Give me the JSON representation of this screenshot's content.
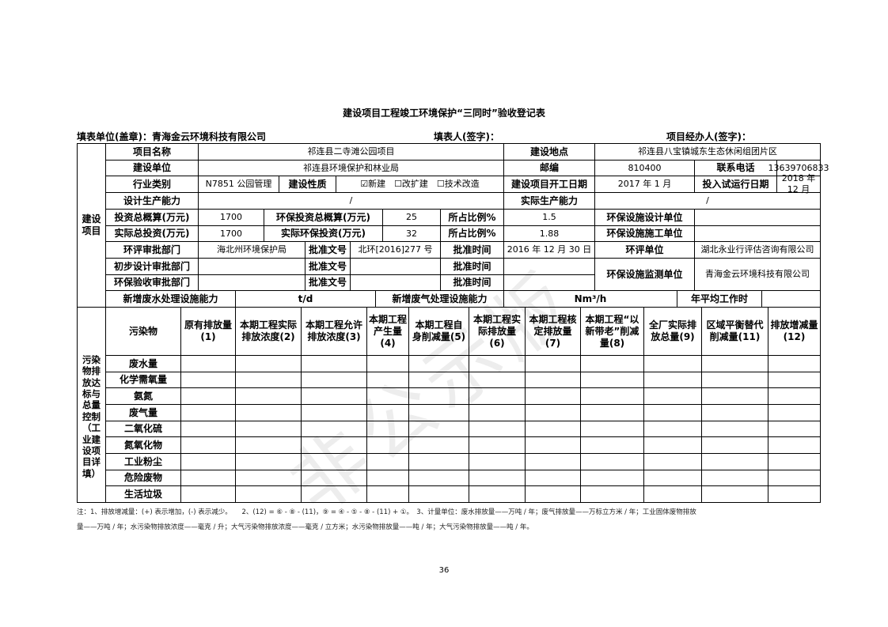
{
  "title": "建设项目工程竣工环境保护“三同时”验收登记表",
  "header": {
    "unit": "填表单位(盖章)：青海金云环境科技有限公司",
    "filler": "填表人(签字)：",
    "manager": "项目经办人(签字)："
  },
  "project": {
    "section_label": "建设项目",
    "name_label": "项目名称",
    "name": "祁连县二寺滩公园项目",
    "location_label": "建设地点",
    "location": "祁连县八宝镇城东生态休闲组团片区",
    "builder_label": "建设单位",
    "builder": "祁连县环境保护和林业局",
    "postcode_label": "邮编",
    "postcode": "810400",
    "phone_label": "联系电话",
    "phone": "13639706833",
    "industry_label": "行业类别",
    "industry": "N7851 公园管理",
    "nature_label": "建设性质",
    "nature": "☑新建　☐改扩建　☐技术改造",
    "start_label": "建设项目开工日期",
    "start": "2017 年 1 月",
    "trial_label": "投入试运行日期",
    "trial": "2018 年 12 月",
    "design_capacity_label": "设计生产能力",
    "design_capacity": "/",
    "actual_capacity_label": "实际生产能力",
    "actual_capacity": "/",
    "total_budget_label": "投资总概算(万元)",
    "total_budget": "1700",
    "env_budget_label": "环保投资总概算(万元)",
    "env_budget": "25",
    "ratio_label": "所占比例%",
    "ratio1": "1.5",
    "design_unit_label": "环保设施设计单位",
    "design_unit": "",
    "actual_total_label": "实际总投资(万元)",
    "actual_total": "1700",
    "actual_env_label": "实际环保投资(万元)",
    "actual_env": "32",
    "ratio2": "1.88",
    "construct_unit_label": "环保设施施工单位",
    "construct_unit": "",
    "eia_dept_label": "环评审批部门",
    "eia_dept": "海北州环境保护局",
    "approval_no_label": "批准文号",
    "eia_no": "北环[2016]277 号",
    "approval_time_label": "批准时间",
    "eia_time": "2016 年 12 月 30 日",
    "eia_unit_label": "环评单位",
    "eia_unit": "湖北永业行评估咨询有限公司",
    "prelim_dept_label": "初步设计审批部门",
    "accept_dept_label": "环保验收审批部门",
    "monitor_unit_label": "环保设施监测单位",
    "monitor_unit": "青海金云环境科技有限公司",
    "water_cap_label": "新增废水处理设施能力",
    "water_cap": "t/d",
    "gas_cap_label": "新增废气处理设施能力",
    "gas_cap": "Nm³/h",
    "work_hours_label": "年平均工作时",
    "work_hours": ""
  },
  "pollutants": {
    "section_label": "污染物排放达标与总量控制（工业建设项目详填）",
    "columns": [
      "污染物",
      "原有排放量(1)",
      "本期工程实际排放浓度(2)",
      "本期工程允许排放浓度(3)",
      "本期工程产生量(4)",
      "本期工程自身削减量(5)",
      "本期工程实际排放量(6)",
      "本期工程核定排放量(7)",
      "本期工程“以新带老”削减量(8)",
      "全厂实际排放总量(9)",
      "区域平衡替代削减量(11)",
      "排放增减量(12)"
    ],
    "rows": [
      "废水量",
      "化学需氧量",
      "氨氮",
      "废气量",
      "二氧化硫",
      "氮氧化物",
      "工业粉尘",
      "危险废物",
      "生活垃圾"
    ]
  },
  "notes": {
    "line1": "注：1、排放增减量：(+) 表示增加，(-) 表示减少。　　2、(12) = ⑥ - ⑧ - (11)，⑨ = ④ - ⑤ - ⑧ - (11) + ①。　3、计量单位：废水排放量——万吨 / 年；废气排放量——万标立方米 / 年；工业固体废物排放",
    "line2": "量——万吨 / 年；水污染物排放浓度——毫克 / 升；大气污染物排放浓度——毫克 / 立方米；水污染物排放量——吨 / 年；大气污染物排放量——吨 / 年。"
  },
  "page_number": "36",
  "watermark": "非公示版"
}
